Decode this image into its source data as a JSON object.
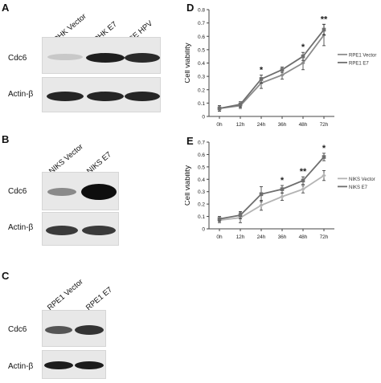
{
  "panels": {
    "A": {
      "letter": "A",
      "lanes": [
        "PHK Vector",
        "PHK E7",
        "CE HPV"
      ],
      "rows": [
        "Cdc6",
        "Actin-β"
      ]
    },
    "B": {
      "letter": "B",
      "lanes": [
        "NIKS Vector",
        "NIKS E7"
      ],
      "rows": [
        "Cdc6",
        "Actin-β"
      ]
    },
    "C": {
      "letter": "C",
      "lanes": [
        "RPE1 Vector",
        "RPE1 E7"
      ],
      "rows": [
        "Cdc6",
        "Actin-β"
      ]
    },
    "D": {
      "letter": "D"
    },
    "E": {
      "letter": "E"
    }
  },
  "chart_data": [
    {
      "panel": "D",
      "type": "line",
      "categories": [
        "0h",
        "12h",
        "24h",
        "36h",
        "48h",
        "72h"
      ],
      "ylabel": "Cell viability",
      "yticks": [
        "0",
        "0.1",
        "0.2",
        "0.3",
        "0.4",
        "0.5",
        "0.6",
        "0.7",
        "0.8"
      ],
      "ylim": [
        0,
        0.8
      ],
      "grid": false,
      "legend": "right",
      "series": [
        {
          "name": "RPE1 Vector",
          "color": "#8c8c8c",
          "values": [
            0.06,
            0.08,
            0.25,
            0.31,
            0.4,
            0.61
          ],
          "err": [
            0.02,
            0.02,
            0.04,
            0.03,
            0.05,
            0.08
          ]
        },
        {
          "name": "RPE1 E7",
          "color": "#6e6e6e",
          "values": [
            0.06,
            0.09,
            0.28,
            0.35,
            0.45,
            0.65
          ],
          "err": [
            0.02,
            0.02,
            0.03,
            0.02,
            0.03,
            0.04
          ]
        }
      ],
      "annotations": [
        {
          "x": "24h",
          "text": "*"
        },
        {
          "x": "48h",
          "text": "*"
        },
        {
          "x": "72h",
          "text": "**"
        }
      ]
    },
    {
      "panel": "E",
      "type": "line",
      "categories": [
        "0h",
        "12h",
        "24h",
        "36h",
        "48h",
        "72h"
      ],
      "ylabel": "Cell viability",
      "yticks": [
        "0",
        "0.1",
        "0.2",
        "0.3",
        "0.4",
        "0.5",
        "0.6",
        "0.7"
      ],
      "ylim": [
        0,
        0.7
      ],
      "grid": false,
      "legend": "right",
      "series": [
        {
          "name": "NIKS Vector",
          "color": "#b4b4b4",
          "values": [
            0.07,
            0.09,
            0.19,
            0.26,
            0.32,
            0.43
          ],
          "err": [
            0.02,
            0.04,
            0.04,
            0.03,
            0.03,
            0.04
          ]
        },
        {
          "name": "NIKS E7",
          "color": "#6e6e6e",
          "values": [
            0.08,
            0.11,
            0.28,
            0.32,
            0.39,
            0.58
          ],
          "err": [
            0.02,
            0.03,
            0.06,
            0.03,
            0.03,
            0.03
          ]
        }
      ],
      "annotations": [
        {
          "x": "36h",
          "text": "*"
        },
        {
          "x": "48h",
          "text": "**"
        },
        {
          "x": "72h",
          "text": "*"
        }
      ]
    }
  ]
}
